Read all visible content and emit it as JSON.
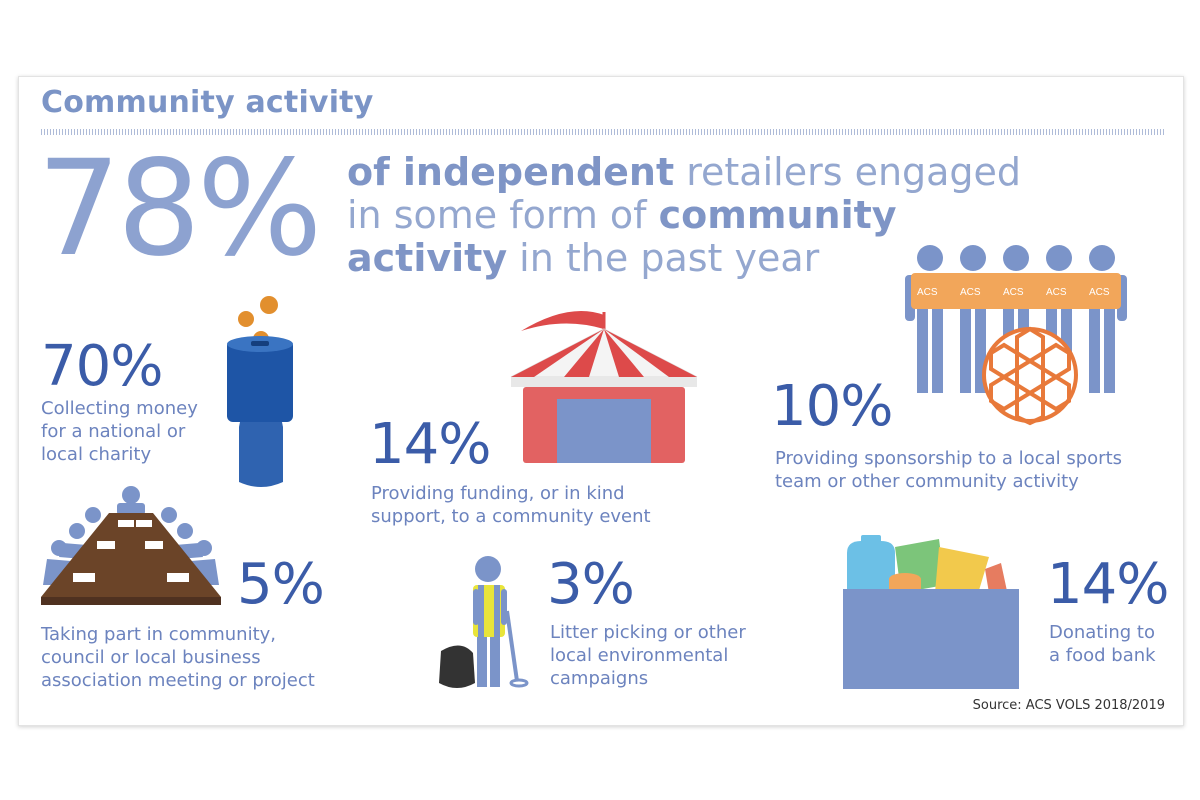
{
  "title": "Community activity",
  "headline": {
    "percent": "78%",
    "parts": [
      "of independent",
      " retailers engaged",
      "in some form of ",
      "community",
      "activity",
      " in the past year"
    ]
  },
  "stats": [
    {
      "percent": "70%",
      "lines": [
        "Collecting money",
        "for a national or",
        "local charity"
      ],
      "icon": "charity-collection-tin-icon"
    },
    {
      "percent": "14%",
      "lines": [
        "Providing funding, or in kind",
        "support, to a community event"
      ],
      "icon": "circus-tent-icon"
    },
    {
      "percent": "10%",
      "lines": [
        "Providing sponsorship to a local sports",
        "team or other community activity"
      ],
      "icon": "sports-team-icon"
    },
    {
      "percent": "5%",
      "lines": [
        "Taking part in community,",
        "council or local business",
        "association meeting or project"
      ],
      "icon": "meeting-table-icon"
    },
    {
      "percent": "3%",
      "lines": [
        "Litter picking or other",
        "local environmental",
        "campaigns"
      ],
      "icon": "litter-picker-icon"
    },
    {
      "percent": "14%",
      "lines": [
        "Donating to",
        "a food bank"
      ],
      "icon": "food-bank-box-icon"
    }
  ],
  "jersey_label": "ACS",
  "source": "Source: ACS VOLS 2018/2019",
  "colors": {
    "title": "#7b94c6",
    "percent": "#3b5ca8",
    "text": "#6c83be",
    "orange": "#f2a65a",
    "red": "#dd5b5b",
    "blue_icon": "#7b94c9",
    "brown": "#6b4428"
  }
}
